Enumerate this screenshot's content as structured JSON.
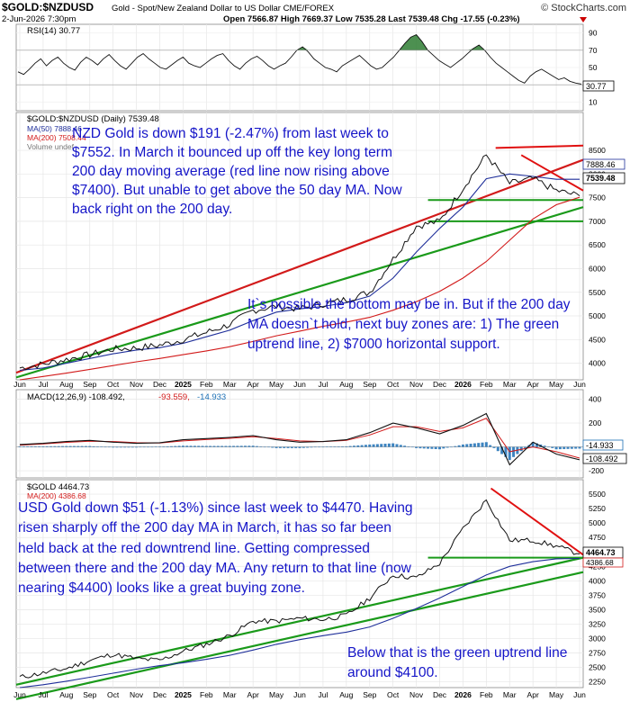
{
  "header": {
    "symbol": "$GOLD:$NZDUSD",
    "description": "Gold - Spot/New Zealand Dollar to US Dollar  CME/FOREX",
    "watermark": "© StockCharts.com",
    "date": "2-Jun-2026 7:30pm",
    "ohlc": "Open 7566.87  High 7669.37  Low 7535.28  Last 7539.48  Chg -17.55 (-0.23%)"
  },
  "rsi": {
    "label": "RSI(14) 30.77",
    "last_label": "30.77",
    "ticks": [
      90,
      70,
      50,
      30,
      10
    ],
    "levels": [
      70,
      30
    ]
  },
  "nzd_panel": {
    "title": "$GOLD:$NZDUSD (Daily) 7539.48",
    "legend": [
      "MA(50) 7888.46",
      "MA(200) 7508.44",
      "Volume undef"
    ],
    "y_ticks": [
      4000,
      4500,
      5000,
      5500,
      6000,
      6500,
      7000,
      7500,
      8000,
      8500
    ],
    "price_badges": [
      "7888.46",
      "7539.48"
    ],
    "note1": "NZD Gold is down $191 (-2.47%) from last week to $7552. In March it bounced up off the key long term 200 day moving average (red line now rising above $7400). But unable to get above the 50 day MA. Now back right on the 200 day.",
    "note2": "It`s possible the bottom may be in. But if the 200 day MA doesn`t hold, next buy zones are: 1) The green uptrend line, 2) $7000 horizontal support."
  },
  "macd": {
    "label_main": "MACD(12,26,9) -108.492,",
    "label_signal": "-93.559,",
    "label_hist": "-14.933",
    "y_ticks": [
      400,
      200,
      0,
      -200
    ],
    "badges": [
      "-14.933",
      "-108.492"
    ]
  },
  "usd_panel": {
    "title": "$GOLD 4464.73",
    "legend": "MA(200) 4386.68",
    "y_ticks": [
      2250,
      2500,
      2750,
      3000,
      3250,
      3500,
      3750,
      4000,
      4250,
      4500,
      4750,
      5000,
      5250,
      5500
    ],
    "price_badges": [
      "4464.73",
      "4386.68"
    ],
    "note1": "USD Gold down $51 (-1.13%) since last week to $4470. Having risen sharply off the 200 day MA in March, it has so far been held back at the red downtrend line. Getting compressed between there and the 200 day MA. Any return to that line (now nearing $4400) looks like a great buying zone.",
    "note2": "Below that is the green uptrend line around $4100."
  },
  "x_axis_mid": [
    "Jun",
    "Jul",
    "Aug",
    "Sep",
    "Oct",
    "Nov",
    "Dec",
    "2025",
    "Feb",
    "Mar",
    "Apr",
    "May",
    "Jun",
    "Jul",
    "Aug",
    "Sep",
    "Oct",
    "Nov",
    "Dec",
    "2026",
    "Feb",
    "Mar",
    "Apr",
    "May",
    "Jun"
  ],
  "x_axis_bottom": [
    "Jun",
    "Jul",
    "Aug",
    "Sep",
    "Oct",
    "Nov",
    "Dec",
    "2025",
    "Feb",
    "Mar",
    "Apr",
    "May",
    "Jun",
    "Jul",
    "Aug",
    "Sep",
    "Oct",
    "Nov",
    "Dec",
    "2026",
    "Feb",
    "Mar",
    "Apr",
    "May",
    "Jun"
  ],
  "colors": {
    "price": "#111111",
    "ma50": "#1f2f9a",
    "ma200": "#d21a1a",
    "uptrend": "#1a9a1a",
    "downtrend": "#e01010",
    "rsi_fill": "#2e7d32",
    "note": "#1515c8",
    "hist": "#1b6fb5"
  },
  "chart_data": [
    {
      "type": "line",
      "panel": "rsi",
      "series": [
        {
          "values": [
            45,
            42,
            48,
            55,
            60,
            52,
            58,
            62,
            55,
            50,
            47,
            56,
            62,
            58,
            53,
            60,
            65,
            58,
            52,
            48,
            55,
            62,
            66,
            60,
            55,
            50,
            48,
            53,
            58,
            62,
            55,
            52,
            50,
            55,
            60,
            64,
            66,
            58,
            52,
            48,
            55,
            60,
            63,
            58,
            52,
            48,
            52,
            55,
            62,
            70,
            74,
            68,
            60,
            55,
            50,
            48,
            45,
            52,
            56,
            60,
            64,
            58,
            52,
            48,
            50,
            56,
            62,
            70,
            78,
            85,
            88,
            80,
            70,
            64,
            58,
            54,
            50,
            55,
            60,
            66,
            72,
            76,
            70,
            62,
            55,
            50,
            45,
            40,
            35,
            32,
            40,
            45,
            48,
            44,
            40,
            36,
            38,
            34,
            32,
            30.77
          ]
        }
      ],
      "ylim": [
        0,
        100
      ]
    },
    {
      "type": "line",
      "panel": "nzd",
      "x": [
        "2024-06",
        "2024-07",
        "2024-08",
        "2024-09",
        "2024-10",
        "2024-11",
        "2024-12",
        "2025-01",
        "2025-02",
        "2025-03",
        "2025-04",
        "2025-05",
        "2025-06",
        "2025-07",
        "2025-08",
        "2025-09",
        "2025-10",
        "2025-11",
        "2025-12",
        "2026-01",
        "2026-02",
        "2026-03",
        "2026-04",
        "2026-05",
        "2026-06"
      ],
      "series": [
        {
          "values": [
            3900,
            3980,
            4080,
            4180,
            4300,
            4320,
            4380,
            4500,
            4650,
            4820,
            5120,
            5200,
            5150,
            5250,
            5350,
            5500,
            6200,
            6900,
            7000,
            7700,
            8400,
            7800,
            7900,
            7650,
            7539
          ]
        },
        {
          "name": "MA(50)",
          "values": [
            3850,
            3900,
            4000,
            4100,
            4200,
            4280,
            4330,
            4420,
            4560,
            4700,
            4900,
            5080,
            5150,
            5200,
            5280,
            5420,
            5800,
            6350,
            6850,
            7300,
            7900,
            8000,
            7950,
            7888,
            7888
          ]
        },
        {
          "name": "MA(200)",
          "values": [
            3650,
            3720,
            3790,
            3870,
            3950,
            4030,
            4100,
            4180,
            4260,
            4350,
            4460,
            4580,
            4680,
            4780,
            4870,
            4970,
            5120,
            5300,
            5520,
            5800,
            6150,
            6600,
            7050,
            7350,
            7508
          ]
        }
      ],
      "ylim": [
        3650,
        9300
      ]
    },
    {
      "type": "bar",
      "panel": "macd",
      "series": [
        {
          "name": "MACD",
          "values": [
            20,
            30,
            45,
            55,
            40,
            30,
            35,
            60,
            70,
            80,
            95,
            60,
            40,
            45,
            60,
            120,
            200,
            160,
            110,
            180,
            280,
            -150,
            40,
            -60,
            -108
          ]
        },
        {
          "name": "Signal",
          "values": [
            15,
            25,
            38,
            48,
            45,
            35,
            33,
            50,
            62,
            72,
            85,
            70,
            50,
            45,
            55,
            100,
            170,
            170,
            130,
            160,
            240,
            -40,
            0,
            -40,
            -94
          ]
        }
      ],
      "ylim": [
        -260,
        480
      ]
    },
    {
      "type": "line",
      "panel": "usd",
      "x": [
        "2024-06",
        "2024-07",
        "2024-08",
        "2024-09",
        "2024-10",
        "2024-11",
        "2024-12",
        "2025-01",
        "2025-02",
        "2025-03",
        "2025-04",
        "2025-05",
        "2025-06",
        "2025-07",
        "2025-08",
        "2025-09",
        "2025-10",
        "2025-11",
        "2025-12",
        "2026-01",
        "2026-02",
        "2026-03",
        "2026-04",
        "2026-05",
        "2026-06"
      ],
      "series": [
        {
          "values": [
            2330,
            2400,
            2480,
            2620,
            2730,
            2650,
            2620,
            2780,
            2900,
            3050,
            3300,
            3300,
            3350,
            3330,
            3400,
            3700,
            4100,
            4050,
            4300,
            4900,
            5400,
            4700,
            4700,
            4600,
            4465
          ]
        },
        {
          "name": "MA(200)",
          "values": [
            2150,
            2200,
            2260,
            2330,
            2400,
            2470,
            2530,
            2580,
            2640,
            2710,
            2800,
            2900,
            2980,
            3050,
            3110,
            3200,
            3350,
            3520,
            3700,
            3900,
            4100,
            4250,
            4330,
            4380,
            4387
          ]
        }
      ],
      "ylim": [
        2150,
        5750
      ]
    }
  ]
}
